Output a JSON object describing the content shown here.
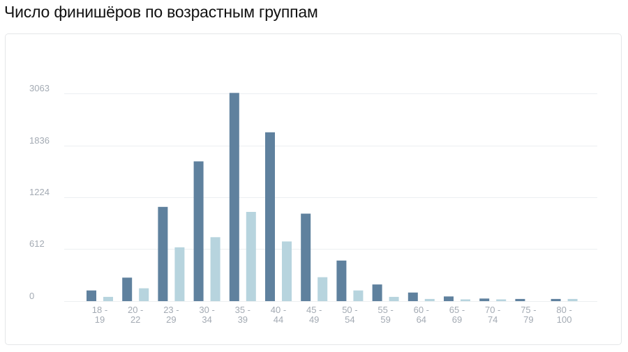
{
  "page": {
    "title": "Число финишёров по возрастным группам"
  },
  "chart_data": {
    "type": "bar",
    "title": "Число финишёров по возрастным группам",
    "xlabel": "",
    "ylabel": "",
    "y_ticks": [
      "0",
      "612",
      "1224",
      "1836",
      "3063"
    ],
    "grid": true,
    "legend": "none",
    "colors": {
      "series1": "#5f819e",
      "series2": "#b7d4de",
      "grid": "#eceff1",
      "tick_text": "#a3aab3"
    },
    "categories": [
      [
        "18 -",
        "19"
      ],
      [
        "20 -",
        "22"
      ],
      [
        "23 -",
        "29"
      ],
      [
        "30 -",
        "34"
      ],
      [
        "35 -",
        "39"
      ],
      [
        "40 -",
        "44"
      ],
      [
        "45 -",
        "49"
      ],
      [
        "50 -",
        "54"
      ],
      [
        "55 -",
        "59"
      ],
      [
        "60 -",
        "64"
      ],
      [
        "65 -",
        "69"
      ],
      [
        "70 -",
        "74"
      ],
      [
        "75 -",
        "79"
      ],
      [
        "80 -",
        "100"
      ]
    ],
    "series": [
      {
        "values": [
          125,
          275,
          1110,
          1650,
          3075,
          2150,
          1030,
          475,
          195,
          100,
          55,
          30,
          25,
          25
        ]
      },
      {
        "values": [
          50,
          150,
          630,
          750,
          1050,
          700,
          280,
          125,
          50,
          25,
          20,
          20,
          0,
          25
        ]
      }
    ]
  }
}
